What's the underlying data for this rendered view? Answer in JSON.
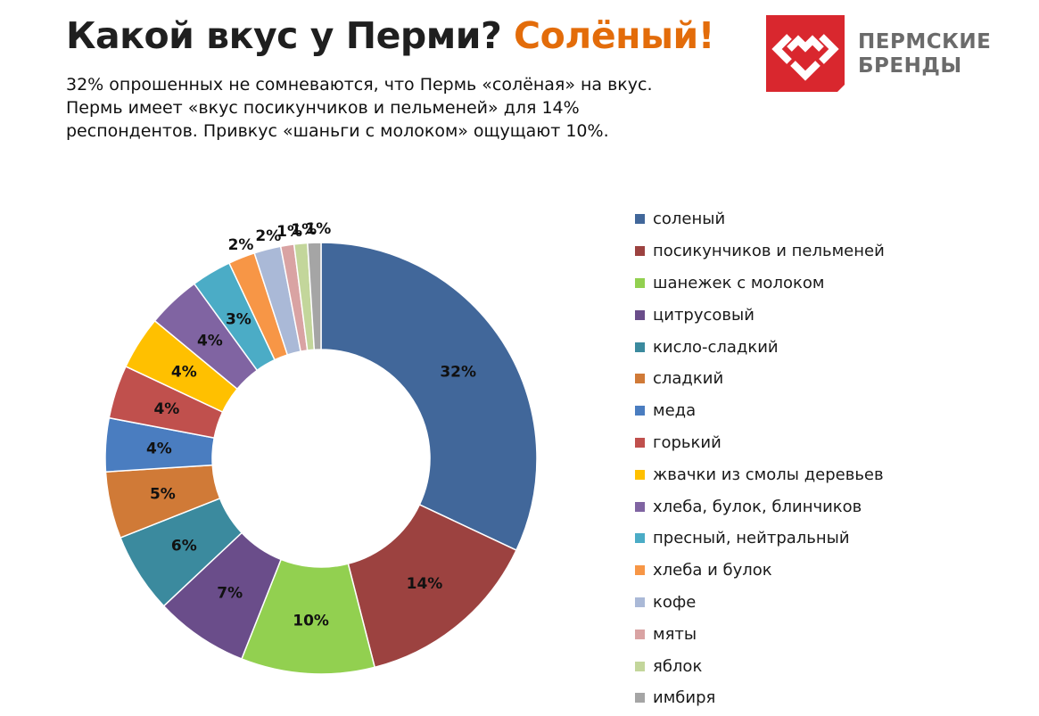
{
  "header": {
    "title_part1": "Какой вкус у Перми?",
    "title_part2": "Солёный!",
    "title_part1_color": "#1f1f1f",
    "title_part2_color": "#e36c0a",
    "subtitle_lines": [
      "32% опрошенных не сомневаются, что Пермь «солёная» на вкус.",
      "Пермь имеет «вкус посикунчиков и пельменей» для 14%",
      "респондентов. Привкус «шаньги с молоком» ощущают 10%."
    ]
  },
  "logo": {
    "line1": "ПЕРМСКИЕ",
    "line2": "БРЕНДЫ",
    "mark_color": "#d9272e",
    "text_color": "#6b6b6b"
  },
  "chart_data": {
    "type": "donut",
    "start_angle_deg": 0,
    "direction": "clockwise",
    "legend_position": "right",
    "slices": [
      {
        "label": "соленый",
        "value": 32,
        "display": "32%",
        "color": "#41679a"
      },
      {
        "label": "посикунчиков и пельменей",
        "value": 14,
        "display": "14%",
        "color": "#9c4240"
      },
      {
        "label": "шанежек с молоком",
        "value": 10,
        "display": "10%",
        "color": "#92d050"
      },
      {
        "label": "цитрусовый",
        "value": 7,
        "display": "7%",
        "color": "#6a4d8a"
      },
      {
        "label": "кисло-сладкий",
        "value": 6,
        "display": "6%",
        "color": "#3b8a9e"
      },
      {
        "label": "сладкий",
        "value": 5,
        "display": "5%",
        "color": "#d07a37"
      },
      {
        "label": "меда",
        "value": 4,
        "display": "4%",
        "color": "#4a7dc0"
      },
      {
        "label": "горький",
        "value": 4,
        "display": "4%",
        "color": "#c0504d"
      },
      {
        "label": "жвачки из смолы деревьев",
        "value": 4,
        "display": "4%",
        "color": "#ffc000"
      },
      {
        "label": "хлеба, булок, блинчиков",
        "value": 4,
        "display": "4%",
        "color": "#8064a2"
      },
      {
        "label": "пресный, нейтральный",
        "value": 3,
        "display": "3%",
        "color": "#4bacc6"
      },
      {
        "label": "хлеба и булок",
        "value": 2,
        "display": "2%",
        "color": "#f79646"
      },
      {
        "label": "кофе",
        "value": 2,
        "display": "2%",
        "color": "#aab9d7"
      },
      {
        "label": "мяты",
        "value": 1,
        "display": "1%",
        "color": "#d9a3a3"
      },
      {
        "label": "яблок",
        "value": 1,
        "display": "1%",
        "color": "#c3d69b"
      },
      {
        "label": "имбиря",
        "value": 1,
        "display": "1%",
        "color": "#a5a5a5"
      }
    ]
  }
}
